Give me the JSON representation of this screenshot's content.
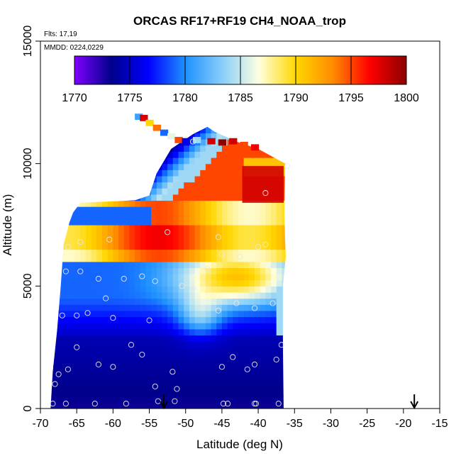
{
  "chart_data": {
    "type": "heatmap",
    "title": "ORCAS RF17+RF19 CH4_NOAA_trop",
    "note_flights": "Flts: 17,19",
    "note_dates": "MMDD: 0224,0229",
    "xlabel": "Latitude (deg N)",
    "ylabel": "Altitude (m)",
    "xlim": [
      -70,
      -15
    ],
    "ylim": [
      0,
      15000
    ],
    "x_ticks": [
      -70,
      -65,
      -60,
      -55,
      -50,
      -45,
      -40,
      -35,
      -30,
      -25,
      -20,
      -15
    ],
    "y_ticks": [
      0,
      5000,
      10000,
      15000
    ],
    "colorbar": {
      "min": 1770,
      "max": 1800,
      "ticks": [
        1770,
        1775,
        1780,
        1785,
        1790,
        1795,
        1800
      ],
      "colors": [
        "#7f00ff",
        "#00008b",
        "#0000ff",
        "#1e90ff",
        "#87cefa",
        "#ffffe0",
        "#ffd700",
        "#ff8c00",
        "#ff0000",
        "#8b0000"
      ]
    },
    "arrows_lat": [
      -53,
      -18.5
    ],
    "field_regions": [
      {
        "name": "lower",
        "lat": [
          -68.5,
          -36.5
        ],
        "alt": [
          0,
          5000
        ],
        "value": 1774
      },
      {
        "name": "mid_band",
        "lat": [
          -67,
          -36.5
        ],
        "alt": [
          3500,
          5800
        ],
        "value": 1782
      },
      {
        "name": "orange_core",
        "lat": [
          -52,
          -36.5
        ],
        "alt": [
          4200,
          6500
        ],
        "value": 1791
      },
      {
        "name": "upper",
        "lat": [
          -67,
          -37
        ],
        "alt": [
          5800,
          8500
        ],
        "value": 1794
      },
      {
        "name": "jet_tongue",
        "lat": [
          -56,
          -36.5
        ],
        "alt": [
          8500,
          11200
        ],
        "value": 1793
      },
      {
        "name": "top_streak",
        "lat": [
          -57,
          -48
        ],
        "alt": [
          10800,
          12000
        ],
        "value": 1786
      }
    ],
    "sample_points": [
      [
        -68.3,
        200
      ],
      [
        -68.0,
        1000
      ],
      [
        -67.5,
        1400
      ],
      [
        -66.5,
        200
      ],
      [
        -66.2,
        1600
      ],
      [
        -65.0,
        2500
      ],
      [
        -62.5,
        200
      ],
      [
        -62.0,
        1800
      ],
      [
        -60.0,
        1700
      ],
      [
        -58.2,
        200
      ],
      [
        -57.5,
        2600
      ],
      [
        -56.0,
        2200
      ],
      [
        -54.2,
        900
      ],
      [
        -53.8,
        300
      ],
      [
        -51.8,
        1500
      ],
      [
        -51.2,
        800
      ],
      [
        -51.5,
        300
      ],
      [
        -45.0,
        1700
      ],
      [
        -44.8,
        200
      ],
      [
        -44.2,
        200
      ],
      [
        -43.5,
        2100
      ],
      [
        -41.5,
        1600
      ],
      [
        -40.5,
        1800
      ],
      [
        -40.5,
        200
      ],
      [
        -40.3,
        200
      ],
      [
        -37.5,
        2000
      ],
      [
        -36.8,
        2600
      ],
      [
        -37.2,
        200
      ],
      [
        -67.0,
        3800
      ],
      [
        -65.0,
        3800
      ],
      [
        -63.5,
        3900
      ],
      [
        -60.0,
        3700
      ],
      [
        -55.0,
        3600
      ],
      [
        -45.5,
        4000
      ],
      [
        -40.5,
        4100
      ],
      [
        -38.0,
        4300
      ],
      [
        -43.0,
        4300
      ],
      [
        -49.0,
        4900
      ],
      [
        -50.5,
        5000
      ],
      [
        -61.0,
        4500
      ],
      [
        -62.0,
        5300
      ],
      [
        -64.5,
        5600
      ],
      [
        -66.5,
        5600
      ],
      [
        -58.5,
        5300
      ],
      [
        -56.0,
        5400
      ],
      [
        -54.2,
        5200
      ],
      [
        -47.0,
        5700
      ],
      [
        -45.0,
        6300
      ],
      [
        -42.5,
        6200
      ],
      [
        -40.0,
        6600
      ],
      [
        -39.0,
        6700
      ],
      [
        -66.2,
        6600
      ],
      [
        -64.5,
        6800
      ],
      [
        -60.5,
        6900
      ],
      [
        -52.5,
        7200
      ],
      [
        -45.5,
        7000
      ],
      [
        -39.0,
        8800
      ],
      [
        -49.0,
        10900
      ],
      [
        -36.0,
        9900
      ]
    ]
  }
}
